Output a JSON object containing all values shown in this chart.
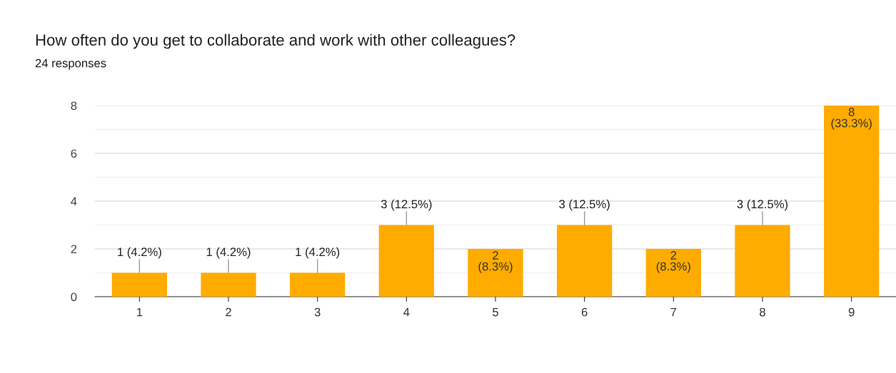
{
  "chart_data": {
    "type": "bar",
    "title": "How often do you get to collaborate and work with other colleagues?",
    "subtitle": "24 responses",
    "categories": [
      "1",
      "2",
      "3",
      "4",
      "5",
      "6",
      "7",
      "8",
      "9"
    ],
    "values": [
      1,
      1,
      1,
      3,
      2,
      3,
      2,
      3,
      8
    ],
    "value_labels": [
      "1 (4.2%)",
      "1 (4.2%)",
      "1 (4.2%)",
      "3 (12.5%)",
      "2\n(8.3%)",
      "3 (12.5%)",
      "2\n(8.3%)",
      "3 (12.5%)",
      "8\n(33.3%)"
    ],
    "color": "#ffab00",
    "ylim": [
      0,
      8
    ],
    "yticks": [
      0,
      2,
      4,
      6,
      8
    ],
    "grid": "y"
  }
}
